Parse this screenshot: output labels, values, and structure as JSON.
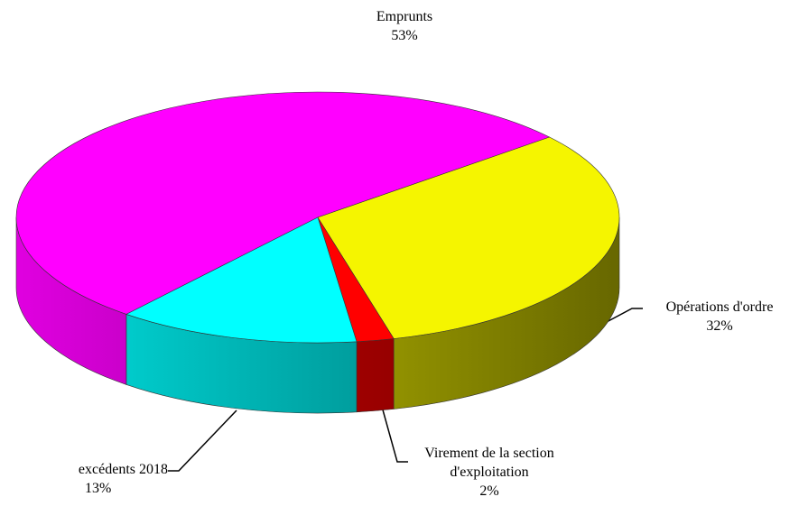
{
  "chart_data": {
    "type": "pie3d",
    "categories": [
      "Emprunts",
      "Opérations d'ordre",
      "Virement de la section d'exploitation",
      "excédents 2018"
    ],
    "values": [
      53,
      32,
      2,
      13
    ],
    "value_labels": [
      "53%",
      "32%",
      "2%",
      "13%"
    ],
    "colors": [
      "#ff00ff",
      "#f5f500",
      "#ff0000",
      "#00ffff"
    ]
  }
}
